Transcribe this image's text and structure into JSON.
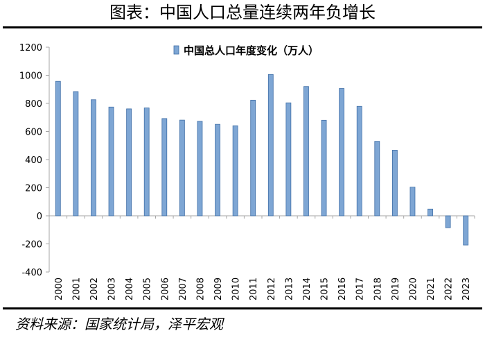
{
  "figure": {
    "title": "图表：中国人口总量连续两年负增长",
    "source": "资料来源：国家统计局，泽平宏观"
  },
  "colors": {
    "bar_fill": "#7ea6d4",
    "bar_edge": "#3f6ea6",
    "axis": "#a6a6a6",
    "text": "#000000"
  },
  "chart_data": {
    "type": "bar",
    "title": "",
    "xlabel": "",
    "ylabel": "",
    "ylim": [
      -400,
      1200
    ],
    "yticks": [
      -400,
      -200,
      0,
      200,
      400,
      600,
      800,
      1000,
      1200
    ],
    "grid": false,
    "legend_position": "top-center",
    "categories": [
      "2000",
      "2001",
      "2002",
      "2003",
      "2004",
      "2005",
      "2006",
      "2007",
      "2008",
      "2009",
      "2010",
      "2011",
      "2012",
      "2013",
      "2014",
      "2015",
      "2016",
      "2017",
      "2018",
      "2019",
      "2020",
      "2021",
      "2022",
      "2023"
    ],
    "series": [
      {
        "name": "中国总人口年度变化（万人）",
        "values": [
          957,
          884,
          826,
          774,
          761,
          768,
          692,
          681,
          673,
          651,
          641,
          823,
          1006,
          804,
          920,
          680,
          906,
          779,
          530,
          467,
          204,
          48,
          -85,
          -208
        ]
      }
    ]
  }
}
